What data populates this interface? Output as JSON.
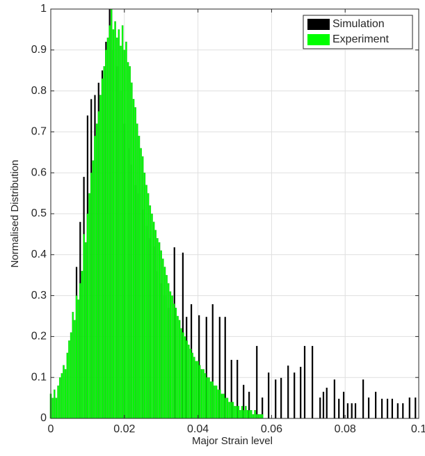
{
  "chart_data": {
    "type": "bar",
    "xlabel": "Major Strain level",
    "ylabel": "Normalised Distribution",
    "xlim": [
      0,
      0.1
    ],
    "xticks": [
      0,
      0.02,
      0.04,
      0.06,
      0.08,
      0.1
    ],
    "ylim": [
      0,
      1
    ],
    "yticks": [
      0,
      0.1,
      0.2,
      0.3,
      0.4,
      0.5,
      0.6,
      0.7,
      0.8,
      0.9,
      1
    ],
    "grid": true,
    "legend": "top-right",
    "series": [
      {
        "name": "Simulation",
        "color": "#000000",
        "x": [
          0.007,
          0.008,
          0.009,
          0.01,
          0.011,
          0.012,
          0.013,
          0.014,
          0.015,
          0.016,
          0.017,
          0.018,
          0.019,
          0.02,
          0.021,
          0.022,
          0.023,
          0.024,
          0.025,
          0.026,
          0.027,
          0.028,
          0.029,
          0.03,
          0.031,
          0.032,
          0.0336,
          0.0359,
          0.0369,
          0.0382,
          0.0403,
          0.0423,
          0.044,
          0.0459,
          0.0474,
          0.0491,
          0.0507,
          0.0524,
          0.0539,
          0.056,
          0.0575,
          0.0592,
          0.0611,
          0.0626,
          0.0645,
          0.0662,
          0.0679,
          0.069,
          0.0711,
          0.0732,
          0.0741,
          0.075,
          0.0771,
          0.0783,
          0.0796,
          0.0807,
          0.0818,
          0.0828,
          0.0849,
          0.0864,
          0.0883,
          0.09,
          0.0915,
          0.0928,
          0.0943,
          0.0957,
          0.0975,
          0.0991
        ],
        "values": [
          0.37,
          0.48,
          0.59,
          0.74,
          0.78,
          0.79,
          0.82,
          0.85,
          0.92,
          1.0,
          0.9,
          0.86,
          0.8,
          0.72,
          0.66,
          0.62,
          0.57,
          0.55,
          0.51,
          0.47,
          0.44,
          0.42,
          0.36,
          0.33,
          0.3,
          0.27,
          0.418,
          0.405,
          0.248,
          0.279,
          0.252,
          0.248,
          0.279,
          0.248,
          0.248,
          0.143,
          0.143,
          0.082,
          0.065,
          0.177,
          0.051,
          0.112,
          0.095,
          0.099,
          0.129,
          0.112,
          0.126,
          0.177,
          0.177,
          0.051,
          0.065,
          0.075,
          0.095,
          0.048,
          0.065,
          0.037,
          0.037,
          0.037,
          0.095,
          0.051,
          0.065,
          0.048,
          0.048,
          0.048,
          0.037,
          0.037,
          0.051,
          0.051
        ]
      },
      {
        "name": "Experiment",
        "color": "#00ff00",
        "x": [
          0,
          0.0005,
          0.001,
          0.0015,
          0.002,
          0.0025,
          0.003,
          0.0035,
          0.004,
          0.0045,
          0.005,
          0.0055,
          0.006,
          0.0065,
          0.007,
          0.0075,
          0.008,
          0.0085,
          0.009,
          0.0095,
          0.01,
          0.0105,
          0.011,
          0.0115,
          0.012,
          0.0125,
          0.013,
          0.0135,
          0.014,
          0.0145,
          0.015,
          0.0155,
          0.016,
          0.0165,
          0.017,
          0.0175,
          0.018,
          0.0185,
          0.019,
          0.0195,
          0.02,
          0.0205,
          0.021,
          0.0215,
          0.022,
          0.0225,
          0.023,
          0.0235,
          0.024,
          0.0245,
          0.025,
          0.0255,
          0.026,
          0.0265,
          0.027,
          0.0275,
          0.028,
          0.0285,
          0.029,
          0.0295,
          0.03,
          0.0305,
          0.031,
          0.0315,
          0.032,
          0.0325,
          0.033,
          0.0335,
          0.034,
          0.0345,
          0.035,
          0.0355,
          0.036,
          0.0365,
          0.037,
          0.0375,
          0.038,
          0.0385,
          0.039,
          0.0395,
          0.04,
          0.0405,
          0.041,
          0.0415,
          0.042,
          0.0425,
          0.043,
          0.0435,
          0.044,
          0.0445,
          0.045,
          0.0455,
          0.046,
          0.0465,
          0.047,
          0.0475,
          0.048,
          0.0485,
          0.049,
          0.0495,
          0.05,
          0.0505,
          0.051,
          0.0515,
          0.052,
          0.0525,
          0.053,
          0.0535,
          0.054,
          0.0545,
          0.055,
          0.0555,
          0.056,
          0.0565,
          0.057,
          0.0575
        ],
        "values": [
          0.06,
          0.05,
          0.07,
          0.05,
          0.08,
          0.1,
          0.11,
          0.13,
          0.12,
          0.16,
          0.19,
          0.21,
          0.26,
          0.24,
          0.3,
          0.29,
          0.33,
          0.36,
          0.45,
          0.43,
          0.5,
          0.55,
          0.6,
          0.63,
          0.69,
          0.72,
          0.75,
          0.79,
          0.83,
          0.86,
          0.9,
          0.93,
          0.96,
          1.0,
          0.95,
          0.97,
          0.93,
          0.95,
          0.91,
          0.96,
          0.9,
          0.92,
          0.87,
          0.86,
          0.82,
          0.78,
          0.76,
          0.72,
          0.69,
          0.66,
          0.64,
          0.6,
          0.57,
          0.55,
          0.52,
          0.5,
          0.48,
          0.46,
          0.44,
          0.43,
          0.41,
          0.39,
          0.37,
          0.35,
          0.33,
          0.31,
          0.3,
          0.28,
          0.27,
          0.25,
          0.24,
          0.22,
          0.21,
          0.2,
          0.19,
          0.18,
          0.17,
          0.16,
          0.15,
          0.14,
          0.14,
          0.13,
          0.12,
          0.12,
          0.11,
          0.1,
          0.1,
          0.09,
          0.09,
          0.08,
          0.08,
          0.07,
          0.07,
          0.06,
          0.06,
          0.05,
          0.05,
          0.04,
          0.04,
          0.04,
          0.03,
          0.03,
          0.03,
          0.02,
          0.03,
          0.02,
          0.03,
          0.02,
          0.02,
          0.02,
          0.01,
          0.02,
          0.01,
          0.01,
          0.01,
          0.01
        ]
      }
    ]
  }
}
